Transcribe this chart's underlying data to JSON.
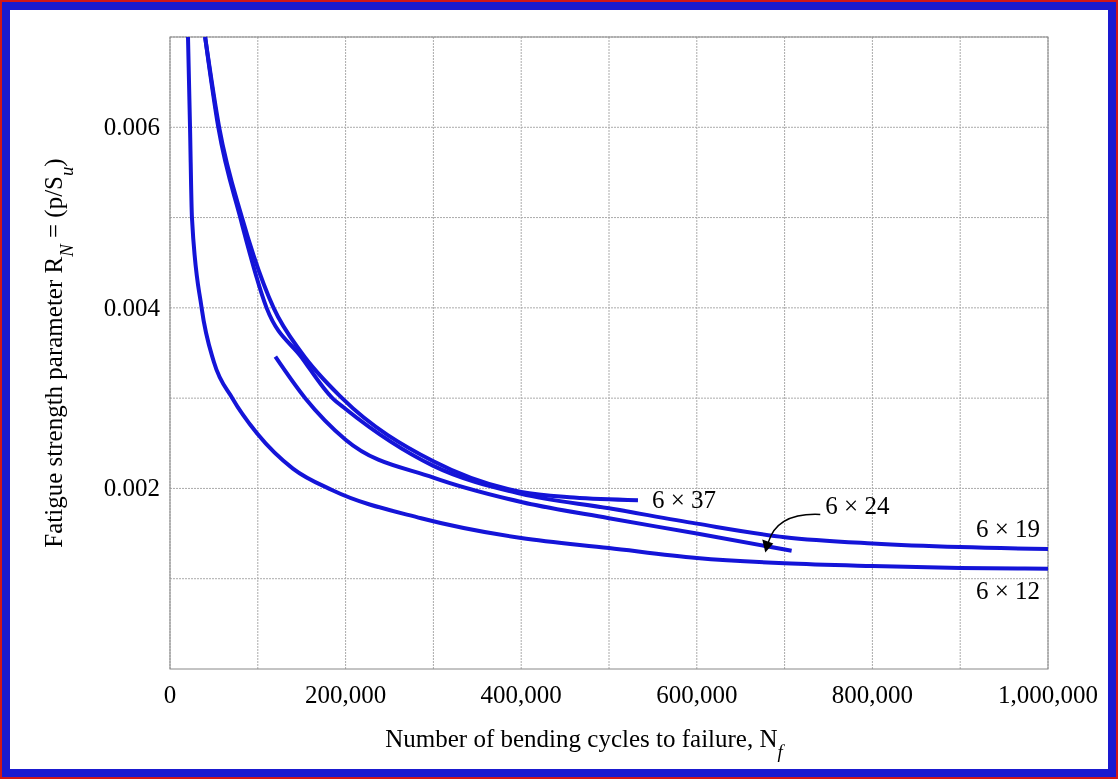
{
  "chart_data": {
    "type": "line",
    "xlabel": "Number of bending cycles to failure, N$_{f}$",
    "ylabel": "Fatigue strength parameter R$_{N}$ = (p/S$_{u}$)",
    "xlim": [
      0,
      1000000
    ],
    "ylim": [
      0,
      0.007
    ],
    "xticks": [
      0,
      {
        "value": 100000,
        "label": null
      },
      {
        "value": 200000,
        "label": "200,000"
      },
      {
        "value": 300000,
        "label": null
      },
      {
        "value": 400000,
        "label": "400,000"
      },
      {
        "value": 500000,
        "label": null
      },
      {
        "value": 600000,
        "label": "600,000"
      },
      {
        "value": 700000,
        "label": null
      },
      {
        "value": 800000,
        "label": "800,000"
      },
      {
        "value": 900000,
        "label": null
      },
      {
        "value": 1000000,
        "label": "1,000,000"
      }
    ],
    "yticks": [
      {
        "value": 0.001,
        "label": null
      },
      0.002,
      {
        "value": 0.003,
        "label": null
      },
      0.004,
      {
        "value": 0.005,
        "label": null
      },
      0.006,
      {
        "value": 0.007,
        "label": null
      }
    ],
    "grid": true,
    "series": [
      {
        "color": "#1414d8",
        "x": [
          20500,
          22800,
          25000,
          36000,
          50000,
          71000,
          100000,
          140000,
          185000,
          286000,
          400000,
          500000,
          600000,
          700000,
          800000,
          900000,
          1000000
        ],
        "values": [
          0.007,
          0.006,
          0.005,
          0.004,
          0.0034,
          0.003,
          0.0026,
          0.00222,
          0.00198,
          0.00167,
          0.00145,
          0.00134,
          0.00123,
          0.00117,
          0.00114,
          0.00112,
          0.00111
        ]
      },
      {
        "color": "#1414d8",
        "x": [
          40000,
          55000,
          80000,
          110000,
          150000,
          185000,
          200000,
          300000,
          400000,
          500000,
          600000,
          700000,
          800000,
          900000,
          1000000
        ],
        "values": [
          0.007,
          0.006,
          0.005,
          0.004,
          0.00345,
          0.003,
          0.00288,
          0.00225,
          0.00194,
          0.00178,
          0.00161,
          0.00146,
          0.00139,
          0.00135,
          0.00133
        ]
      },
      {
        "color": "#1414d8",
        "x": [
          120000,
          154000,
          200000,
          300000,
          400000,
          500000,
          600000,
          708000
        ],
        "values": [
          0.00346,
          0.003,
          0.00254,
          0.00212,
          0.00185,
          0.00167,
          0.0015,
          0.00131
        ]
      },
      {
        "color": "#1414d8",
        "x": [
          40000,
          56000,
          82000,
          118000,
          150000,
          196000,
          300000,
          400000,
          460000,
          533000
        ],
        "values": [
          0.007,
          0.006,
          0.005,
          0.004,
          0.0035,
          0.003,
          0.0023,
          0.00196,
          0.0019,
          0.00187
        ]
      }
    ],
    "annotations": [
      {
        "text": "6 × 37",
        "x": 533000,
        "y": 0.00187
      },
      {
        "text": "6 × 24",
        "x": 678000,
        "y": 0.00138
      },
      {
        "text": "6 × 19",
        "x": 1000000,
        "y": 0.00133
      },
      {
        "text": "6 × 12",
        "x": 1000000,
        "y": 0.00111
      }
    ]
  }
}
